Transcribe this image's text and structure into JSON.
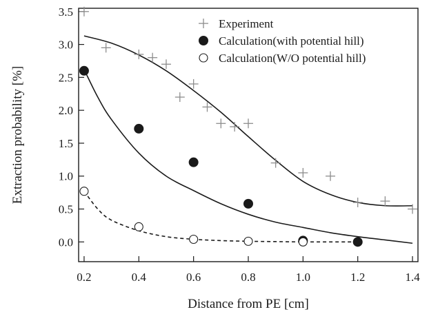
{
  "chart_data": {
    "type": "scatter",
    "xlabel": "Distance from PE [cm]",
    "ylabel": "Extraction probability [%]",
    "xlim": [
      0.18,
      1.42
    ],
    "ylim": [
      -0.3,
      3.55
    ],
    "x_ticks": [
      0.2,
      0.4,
      0.6,
      0.8,
      1.0,
      1.2,
      1.4
    ],
    "x_tick_labels": [
      "0.2",
      "0.4",
      "0.6",
      "0.8",
      "1.0",
      "1.2",
      "1.4"
    ],
    "y_ticks": [
      0.0,
      0.5,
      1.0,
      1.5,
      2.0,
      2.5,
      3.0,
      3.5
    ],
    "y_tick_labels": [
      "0.0",
      "0.5",
      "1.0",
      "1.5",
      "2.0",
      "2.5",
      "3.0",
      "3.5"
    ],
    "legend_position": "top-right",
    "grid": false,
    "series": [
      {
        "name": "Experiment",
        "marker": "plus",
        "color": "#8c8c8c",
        "points": [
          [
            0.2,
            3.5
          ],
          [
            0.28,
            2.95
          ],
          [
            0.4,
            2.85
          ],
          [
            0.45,
            2.8
          ],
          [
            0.5,
            2.7
          ],
          [
            0.55,
            2.2
          ],
          [
            0.6,
            2.4
          ],
          [
            0.65,
            2.05
          ],
          [
            0.7,
            1.8
          ],
          [
            0.75,
            1.75
          ],
          [
            0.8,
            1.8
          ],
          [
            0.9,
            1.2
          ],
          [
            1.0,
            1.05
          ],
          [
            1.1,
            1.0
          ],
          [
            1.2,
            0.6
          ],
          [
            1.3,
            0.62
          ],
          [
            1.4,
            0.5
          ]
        ]
      },
      {
        "name": "Calculation(with potential hill)",
        "marker": "filled-circle",
        "color": "#1a1a1a",
        "points": [
          [
            0.2,
            2.6
          ],
          [
            0.4,
            1.72
          ],
          [
            0.6,
            1.21
          ],
          [
            0.8,
            0.58
          ],
          [
            1.0,
            0.02
          ],
          [
            1.2,
            0.0
          ]
        ]
      },
      {
        "name": "Calculation(W/O potential hill)",
        "marker": "open-circle",
        "color": "#1a1a1a",
        "points": [
          [
            0.2,
            0.77
          ],
          [
            0.4,
            0.23
          ],
          [
            0.6,
            0.04
          ],
          [
            0.8,
            0.01
          ],
          [
            1.0,
            0.0
          ]
        ]
      }
    ],
    "curves": [
      {
        "style": "solid",
        "color": "#1a1a1a",
        "points": [
          [
            0.2,
            3.13
          ],
          [
            0.3,
            3.02
          ],
          [
            0.4,
            2.84
          ],
          [
            0.5,
            2.6
          ],
          [
            0.6,
            2.3
          ],
          [
            0.7,
            1.97
          ],
          [
            0.8,
            1.6
          ],
          [
            0.9,
            1.24
          ],
          [
            1.0,
            0.92
          ],
          [
            1.1,
            0.72
          ],
          [
            1.2,
            0.6
          ],
          [
            1.3,
            0.55
          ],
          [
            1.4,
            0.55
          ]
        ]
      },
      {
        "style": "solid",
        "color": "#1a1a1a",
        "points": [
          [
            0.2,
            2.62
          ],
          [
            0.25,
            2.2
          ],
          [
            0.3,
            1.86
          ],
          [
            0.4,
            1.35
          ],
          [
            0.5,
            1.0
          ],
          [
            0.6,
            0.78
          ],
          [
            0.7,
            0.58
          ],
          [
            0.8,
            0.42
          ],
          [
            0.9,
            0.3
          ],
          [
            1.0,
            0.22
          ],
          [
            1.1,
            0.14
          ],
          [
            1.2,
            0.08
          ],
          [
            1.3,
            0.03
          ],
          [
            1.4,
            -0.02
          ]
        ]
      },
      {
        "style": "dashed",
        "color": "#1a1a1a",
        "points": [
          [
            0.2,
            0.77
          ],
          [
            0.25,
            0.5
          ],
          [
            0.3,
            0.33
          ],
          [
            0.4,
            0.17
          ],
          [
            0.5,
            0.08
          ],
          [
            0.6,
            0.04
          ],
          [
            0.7,
            0.02
          ],
          [
            0.8,
            0.01
          ],
          [
            0.9,
            0.005
          ],
          [
            1.0,
            0.0
          ],
          [
            1.2,
            0.0
          ]
        ]
      }
    ]
  }
}
